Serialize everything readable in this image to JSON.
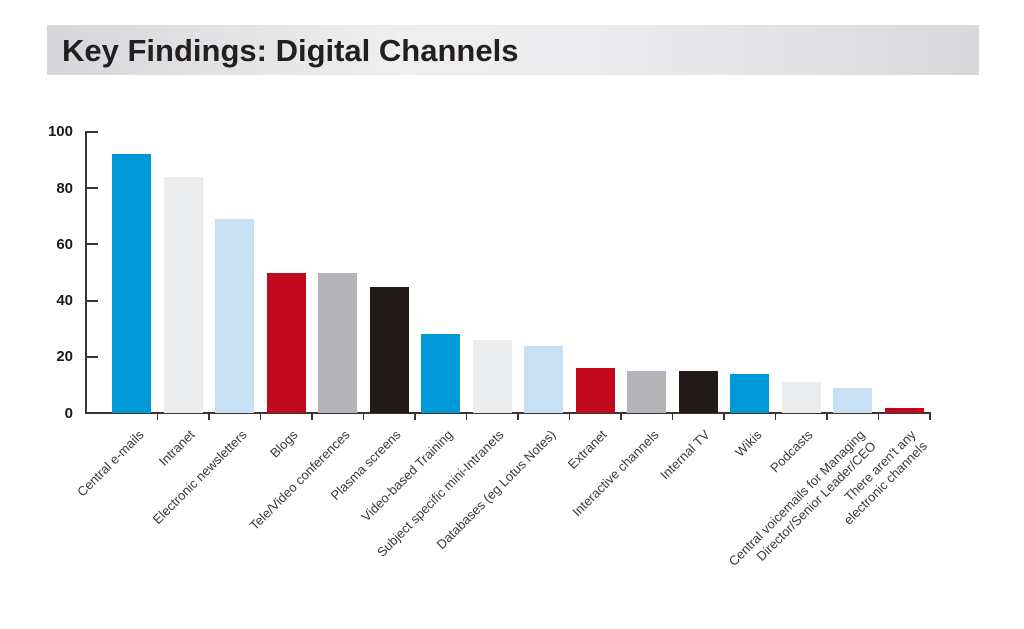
{
  "header": {
    "title": "Key Findings: Digital Channels"
  },
  "chart_data": {
    "type": "bar",
    "title": "Key Findings: Digital Channels",
    "xlabel": "",
    "ylabel": "",
    "ylim": [
      0,
      100
    ],
    "yticks": [
      0,
      20,
      40,
      60,
      80,
      100
    ],
    "grid": false,
    "legend": "none",
    "categories": [
      "Central e-mails",
      "Intranet",
      "Electronic newsletters",
      "Blogs",
      "Tele/Video conferences",
      "Plasma screens",
      "Video-based Training",
      "Subject specific mini-Intranets",
      "Databases (eg Lotus Notes)",
      "Extranet",
      "Interactive channels",
      "Internal TV",
      "Wikis",
      "Podcasts",
      "Central voicemails for Managing\nDirector/Senior Leader/CEO",
      "There aren't any\nelectronic channels"
    ],
    "values": [
      92,
      84,
      69,
      50,
      50,
      45,
      28,
      26,
      24,
      16,
      15,
      15,
      14,
      11,
      9,
      2
    ],
    "bar_colors": [
      "#0099d8",
      "#ebecee",
      "#c7e0f3",
      "#c1081c",
      "#b3b3b8",
      "#231b1a",
      "#0099d8",
      "#ebecee",
      "#c7e0f3",
      "#c1081c",
      "#b3b3b8",
      "#231b1a",
      "#0099d8",
      "#ebecee",
      "#c7e0f3",
      "#c1081c"
    ],
    "palette": {
      "blue": "#0099d8",
      "light_gray": "#ebecee",
      "light_blue": "#c7e0f3",
      "red": "#c1081c",
      "gray": "#b3b3b8",
      "black": "#231b1a"
    }
  },
  "colors": {
    "title_text": "#231f20",
    "header_gradient_left": "#d6d6da",
    "header_gradient_mid": "#efeff1",
    "header_gradient_right": "#d8d8db",
    "axis": "#3a3435",
    "tick_label_text": "#1d1a1b",
    "category_label_text": "#3e3738",
    "background": "#ffffff"
  }
}
